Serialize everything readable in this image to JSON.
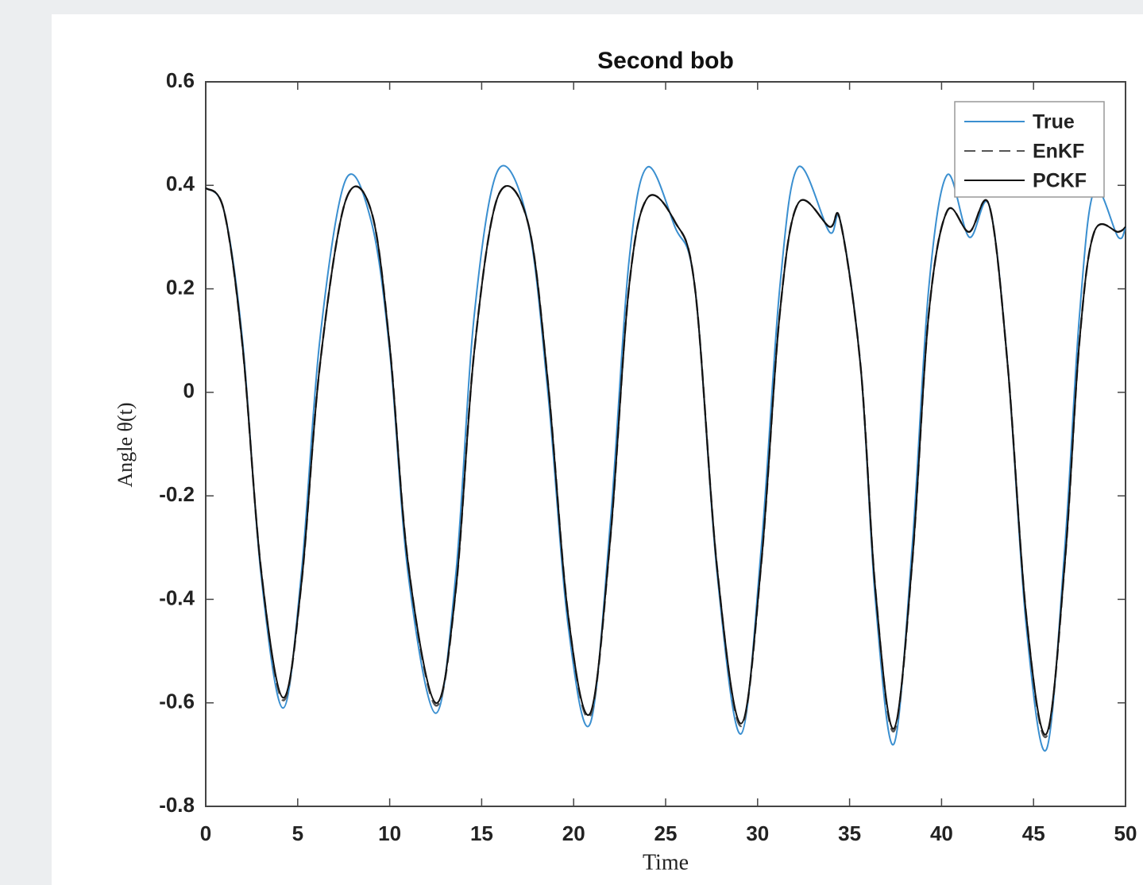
{
  "chart_data": {
    "type": "line",
    "title": "Second bob",
    "xlabel": "Time",
    "ylabel": "Angle θ(t)",
    "x": [
      0,
      1,
      2,
      3,
      4.2,
      5.2,
      6.2,
      7.6,
      9,
      10,
      11,
      12.5,
      13.6,
      14.6,
      15.9,
      17.5,
      18.6,
      19.7,
      20.9,
      22,
      23,
      24,
      25.5,
      26.6,
      27.8,
      29.1,
      30.2,
      31.2,
      32.2,
      33.9,
      34.5,
      35.6,
      36.4,
      37.4,
      38.4,
      39.3,
      40.3,
      41.5,
      42.6,
      43.6,
      44.6,
      45.7,
      46.7,
      47.5,
      48.3,
      49.6,
      50
    ],
    "series": [
      {
        "name": "True",
        "color": "#3a8fd0",
        "linestyle": "solid",
        "values": [
          0.395,
          0.35,
          0.1,
          -0.35,
          -0.61,
          -0.35,
          0.1,
          0.41,
          0.33,
          0.08,
          -0.35,
          -0.62,
          -0.35,
          0.15,
          0.43,
          0.33,
          0.0,
          -0.45,
          -0.64,
          -0.25,
          0.25,
          0.435,
          0.32,
          0.2,
          -0.35,
          -0.66,
          -0.3,
          0.2,
          0.435,
          0.31,
          0.33,
          0.05,
          -0.4,
          -0.68,
          -0.3,
          0.2,
          0.42,
          0.3,
          0.36,
          0.05,
          -0.45,
          -0.69,
          -0.3,
          0.15,
          0.39,
          0.3,
          0.32
        ]
      },
      {
        "name": "EnKF",
        "color": "#555555",
        "linestyle": "dashed",
        "values": [
          0.395,
          0.35,
          0.09,
          -0.34,
          -0.595,
          -0.37,
          0.05,
          0.37,
          0.35,
          0.09,
          -0.33,
          -0.605,
          -0.38,
          0.08,
          0.38,
          0.33,
          0.02,
          -0.43,
          -0.625,
          -0.28,
          0.2,
          0.375,
          0.33,
          0.2,
          -0.34,
          -0.645,
          -0.33,
          0.15,
          0.365,
          0.32,
          0.33,
          0.05,
          -0.38,
          -0.655,
          -0.33,
          0.15,
          0.35,
          0.31,
          0.36,
          0.05,
          -0.43,
          -0.665,
          -0.33,
          0.1,
          0.31,
          0.31,
          0.32
        ]
      },
      {
        "name": "PCKF",
        "color": "#111111",
        "linestyle": "solid",
        "values": [
          0.395,
          0.35,
          0.09,
          -0.34,
          -0.59,
          -0.37,
          0.05,
          0.37,
          0.35,
          0.09,
          -0.33,
          -0.6,
          -0.38,
          0.08,
          0.38,
          0.33,
          0.02,
          -0.43,
          -0.62,
          -0.28,
          0.2,
          0.375,
          0.33,
          0.2,
          -0.34,
          -0.64,
          -0.33,
          0.15,
          0.365,
          0.32,
          0.33,
          0.05,
          -0.38,
          -0.65,
          -0.33,
          0.15,
          0.35,
          0.31,
          0.36,
          0.05,
          -0.43,
          -0.66,
          -0.33,
          0.1,
          0.31,
          0.31,
          0.32
        ]
      }
    ],
    "xlim": [
      0,
      50
    ],
    "xticks": [
      0,
      5,
      10,
      15,
      20,
      25,
      30,
      35,
      40,
      45,
      50
    ],
    "ylim": [
      -0.8,
      0.6
    ],
    "yticks": [
      -0.8,
      -0.6,
      -0.4,
      -0.2,
      0,
      0.2,
      0.4,
      0.6
    ],
    "grid": false,
    "legend": "upper right"
  }
}
